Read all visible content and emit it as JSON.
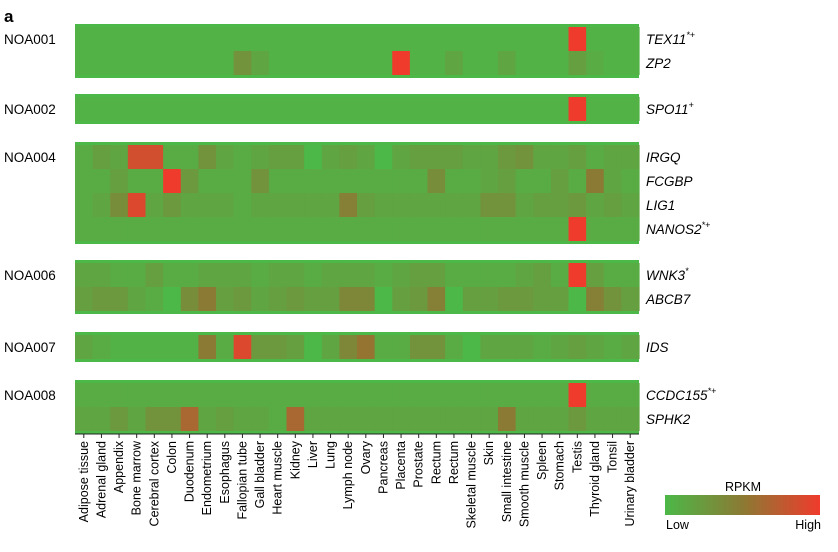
{
  "chart_data": {
    "type": "heatmap",
    "panel_label": "a",
    "columns": [
      "Adipose tissue",
      "Adrenal gland",
      "Appendix",
      "Bone marrow",
      "Cerebral cortex",
      "Colon",
      "Duodenum",
      "Endometrium",
      "Esophagus",
      "Fallopian tube",
      "Gall bladder",
      "Heart muscle",
      "Kidney",
      "Liver",
      "Lung",
      "Lymph node",
      "Ovary",
      "Pancreas",
      "Placenta",
      "Prostate",
      "Rectum",
      "Rectum",
      "Skeletal muscle",
      "Skin",
      "Small intestine",
      "Smooth muscle",
      "Spleen",
      "Stomach",
      "Testis",
      "Thyroid gland",
      "Tonsil",
      "Urinary bladder"
    ],
    "groups": [
      {
        "sample": "NOA001",
        "rows": [
          {
            "gene": "TEX11",
            "sup": "*+",
            "values": [
              0.05,
              0.05,
              0.05,
              0.05,
              0.05,
              0.05,
              0.05,
              0.05,
              0.05,
              0.05,
              0.05,
              0.05,
              0.05,
              0.05,
              0.05,
              0.05,
              0.05,
              0.05,
              0.05,
              0.05,
              0.05,
              0.05,
              0.05,
              0.05,
              0.05,
              0.05,
              0.05,
              0.05,
              1.0,
              0.05,
              0.05,
              0.05
            ]
          },
          {
            "gene": "ZP2",
            "sup": "",
            "values": [
              0.05,
              0.05,
              0.05,
              0.05,
              0.05,
              0.05,
              0.05,
              0.05,
              0.05,
              0.3,
              0.15,
              0.05,
              0.05,
              0.05,
              0.05,
              0.05,
              0.05,
              0.05,
              1.0,
              0.05,
              0.05,
              0.15,
              0.05,
              0.05,
              0.15,
              0.05,
              0.05,
              0.05,
              0.2,
              0.1,
              0.05,
              0.05
            ]
          }
        ]
      },
      {
        "sample": "NOA002",
        "rows": [
          {
            "gene": "SPO11",
            "sup": "+",
            "values": [
              0.05,
              0.05,
              0.05,
              0.05,
              0.05,
              0.05,
              0.05,
              0.05,
              0.05,
              0.05,
              0.05,
              0.05,
              0.05,
              0.05,
              0.05,
              0.05,
              0.05,
              0.05,
              0.05,
              0.05,
              0.05,
              0.05,
              0.05,
              0.05,
              0.05,
              0.05,
              0.05,
              0.05,
              1.0,
              0.05,
              0.05,
              0.05
            ]
          }
        ]
      },
      {
        "sample": "NOA004",
        "rows": [
          {
            "gene": "IRGQ",
            "sup": "",
            "values": [
              0.1,
              0.2,
              0.15,
              0.85,
              0.85,
              0.1,
              0.1,
              0.3,
              0.15,
              0.1,
              0.15,
              0.2,
              0.2,
              0.0,
              0.15,
              0.2,
              0.15,
              0.0,
              0.15,
              0.2,
              0.2,
              0.2,
              0.15,
              0.15,
              0.25,
              0.3,
              0.15,
              0.15,
              0.2,
              0.1,
              0.15,
              0.15
            ]
          },
          {
            "gene": "FCGBP",
            "sup": "",
            "values": [
              0.1,
              0.1,
              0.2,
              0.1,
              0.1,
              1.0,
              0.25,
              0.1,
              0.1,
              0.1,
              0.3,
              0.1,
              0.1,
              0.1,
              0.1,
              0.1,
              0.1,
              0.1,
              0.1,
              0.1,
              0.35,
              0.1,
              0.1,
              0.15,
              0.2,
              0.1,
              0.1,
              0.2,
              0.1,
              0.5,
              0.15,
              0.1
            ]
          },
          {
            "gene": "LIG1",
            "sup": "",
            "values": [
              0.1,
              0.15,
              0.35,
              0.9,
              0.15,
              0.25,
              0.15,
              0.15,
              0.15,
              0.1,
              0.15,
              0.15,
              0.15,
              0.15,
              0.15,
              0.45,
              0.2,
              0.15,
              0.15,
              0.15,
              0.15,
              0.15,
              0.15,
              0.3,
              0.3,
              0.15,
              0.2,
              0.2,
              0.25,
              0.15,
              0.2,
              0.15
            ]
          },
          {
            "gene": "NANOS2",
            "sup": "*+",
            "values": [
              0.1,
              0.1,
              0.1,
              0.1,
              0.1,
              0.1,
              0.1,
              0.1,
              0.1,
              0.1,
              0.1,
              0.1,
              0.1,
              0.1,
              0.1,
              0.1,
              0.1,
              0.1,
              0.1,
              0.1,
              0.1,
              0.1,
              0.1,
              0.1,
              0.1,
              0.1,
              0.1,
              0.1,
              1.0,
              0.1,
              0.1,
              0.1
            ]
          }
        ]
      },
      {
        "sample": "NOA006",
        "rows": [
          {
            "gene": "WNK3",
            "sup": "*",
            "values": [
              0.15,
              0.15,
              0.1,
              0.1,
              0.2,
              0.1,
              0.1,
              0.15,
              0.15,
              0.15,
              0.1,
              0.15,
              0.15,
              0.1,
              0.15,
              0.15,
              0.15,
              0.1,
              0.15,
              0.2,
              0.2,
              0.1,
              0.1,
              0.1,
              0.1,
              0.15,
              0.2,
              0.1,
              1.0,
              0.2,
              0.1,
              0.1
            ]
          },
          {
            "gene": "ABCB7",
            "sup": "",
            "values": [
              0.2,
              0.25,
              0.25,
              0.15,
              0.1,
              0.0,
              0.35,
              0.5,
              0.2,
              0.25,
              0.15,
              0.2,
              0.25,
              0.2,
              0.2,
              0.4,
              0.4,
              0.0,
              0.2,
              0.25,
              0.45,
              0.0,
              0.2,
              0.2,
              0.25,
              0.25,
              0.2,
              0.2,
              0.0,
              0.45,
              0.3,
              0.2
            ]
          }
        ]
      },
      {
        "sample": "NOA007",
        "rows": [
          {
            "gene": "IDS",
            "sup": "",
            "values": [
              0.15,
              0.1,
              0.05,
              0.05,
              0.05,
              0.05,
              0.05,
              0.5,
              0.1,
              0.9,
              0.25,
              0.25,
              0.2,
              0.0,
              0.15,
              0.4,
              0.55,
              0.1,
              0.1,
              0.3,
              0.3,
              0.1,
              0.0,
              0.15,
              0.15,
              0.15,
              0.1,
              0.15,
              0.2,
              0.15,
              0.1,
              0.15
            ]
          }
        ]
      },
      {
        "sample": "NOA008",
        "rows": [
          {
            "gene": "CCDC155",
            "sup": "*+",
            "values": [
              0.1,
              0.1,
              0.1,
              0.1,
              0.1,
              0.1,
              0.1,
              0.1,
              0.1,
              0.1,
              0.1,
              0.1,
              0.1,
              0.1,
              0.1,
              0.1,
              0.1,
              0.1,
              0.1,
              0.1,
              0.1,
              0.1,
              0.1,
              0.1,
              0.1,
              0.1,
              0.1,
              0.1,
              1.0,
              0.1,
              0.1,
              0.1
            ]
          },
          {
            "gene": "SPHK2",
            "sup": "",
            "values": [
              0.15,
              0.15,
              0.25,
              0.15,
              0.3,
              0.3,
              0.65,
              0.15,
              0.2,
              0.15,
              0.15,
              0.1,
              0.65,
              0.15,
              0.15,
              0.15,
              0.15,
              0.15,
              0.15,
              0.15,
              0.15,
              0.15,
              0.15,
              0.15,
              0.5,
              0.15,
              0.15,
              0.15,
              0.25,
              0.15,
              0.15,
              0.15
            ]
          }
        ]
      }
    ],
    "legend": {
      "title": "RPKM",
      "low": "Low",
      "high": "High"
    },
    "colors": {
      "low": "#4cb848",
      "mid": "#8b7a33",
      "high": "#ef3b2c"
    }
  }
}
